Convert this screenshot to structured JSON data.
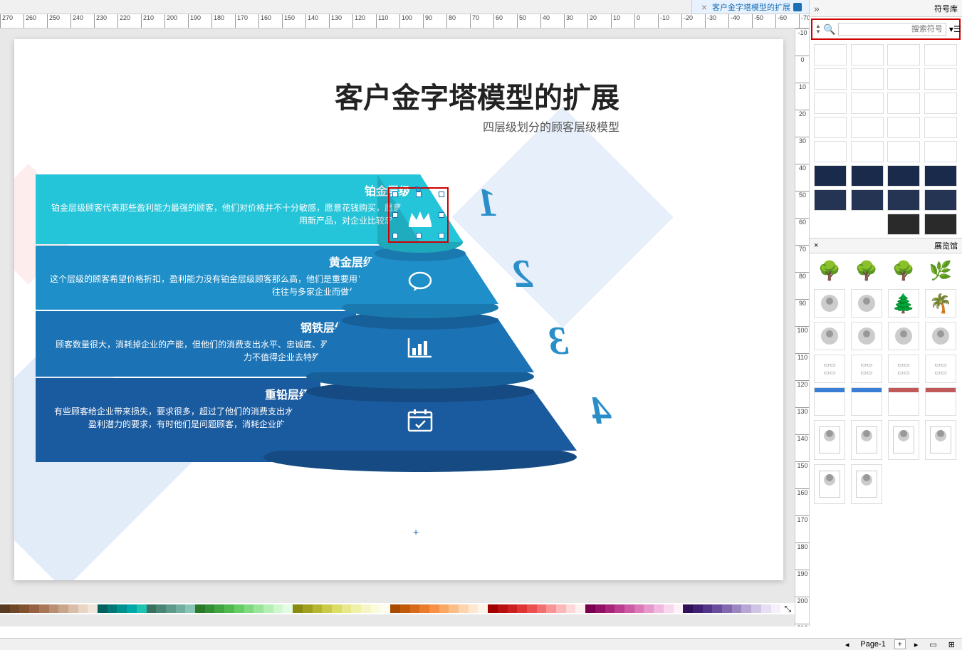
{
  "tab": {
    "title": "客户金字塔模型的扩展",
    "close": "×"
  },
  "rightPanel": {
    "header": "符号库",
    "searchPlaceholder": "搜索符号",
    "panel2": "展览馆",
    "close": "×",
    "chev": "»"
  },
  "slide": {
    "title": "客户金字塔模型的扩展",
    "subtitle": "四层级划分的顾客层级模型"
  },
  "pyramid": {
    "levels": [
      {
        "num": "1",
        "title": "铂金层级",
        "desc": "铂金层级顾客代表那些盈利能力最强的顾客，他们对价格并不十分敏感，愿意花钱购买，愿意试用新产品，对企业比较忠诚。",
        "color": "#24c4d9"
      },
      {
        "num": "2",
        "title": "黄金层级",
        "desc": "这个层级的顾客希望价格折扣，盈利能力没有铂金层级顾客那么高，他们是重要用户，往往与多家企业而做生意。",
        "color": "#1f8fc9"
      },
      {
        "num": "3",
        "title": "钢铁层级",
        "desc": "顾客数量很大，消耗掉企业的产能，但他们的消费支出水平、忠诚度、盈利能力不值得企业去特殊对待。",
        "color": "#1b72b5"
      },
      {
        "num": "4",
        "title": "重铅层级",
        "desc": "有些顾客给企业带来损失，要求很多，超过了他们的消费支出水平和盈利潜力的要求，有时他们是问题顾客，消耗企业的资源。",
        "color": "#1a5a9e"
      }
    ]
  },
  "ruler": {
    "h": [
      "-70",
      "-60",
      "-50",
      "-40",
      "-30",
      "-20",
      "-10",
      "0",
      "10",
      "20",
      "30",
      "40",
      "50",
      "60",
      "70",
      "80",
      "90",
      "100",
      "110",
      "120",
      "130",
      "140",
      "150",
      "160",
      "170",
      "180",
      "190",
      "200",
      "210",
      "220",
      "230",
      "240",
      "250",
      "260",
      "270"
    ],
    "v": [
      "-10",
      "0",
      "10",
      "20",
      "30",
      "40",
      "50",
      "60",
      "70",
      "80",
      "90",
      "100",
      "110",
      "120",
      "130",
      "140",
      "150",
      "160",
      "170",
      "180",
      "190",
      "200",
      "210"
    ]
  },
  "colors": [
    "#5a3a20",
    "#6e4628",
    "#82522f",
    "#966043",
    "#a87759",
    "#b98e72",
    "#c9a58c",
    "#d9bda7",
    "#e8d5c3",
    "#f2e6da",
    "#006060",
    "#007878",
    "#009090",
    "#00a8a8",
    "#1fc4b0",
    "#3a7060",
    "#4a8575",
    "#5c9a8a",
    "#70af9f",
    "#8ac4b4",
    "#2a7a2a",
    "#349034",
    "#40a540",
    "#50ba50",
    "#66cc66",
    "#80d980",
    "#9ae59a",
    "#b4f0b4",
    "#cef8ce",
    "#e4fce4",
    "#8a8a10",
    "#a0a020",
    "#b5b530",
    "#caca48",
    "#dcdc66",
    "#e8e888",
    "#f0f0a8",
    "#f6f6c4",
    "#fafadc",
    "#fdfdf0",
    "#a84a00",
    "#c05a0a",
    "#d66a18",
    "#e87c2c",
    "#f59044",
    "#faa764",
    "#fcbe88",
    "#fdd4ac",
    "#fee8d0",
    "#fff5ea",
    "#a00000",
    "#b81010",
    "#cc2020",
    "#dd3434",
    "#ea5050",
    "#f27070",
    "#f89494",
    "#fcb8b8",
    "#fed8d8",
    "#fff0f0",
    "#7a0050",
    "#921065",
    "#a8257a",
    "#bc3e90",
    "#cc5aa4",
    "#da78b8",
    "#e698cc",
    "#f0b8de",
    "#f8d6ee",
    "#fdf0f8",
    "#30105a",
    "#402072",
    "#543488",
    "#6a4c9c",
    "#8268b0",
    "#9c86c2",
    "#b6a6d4",
    "#d0c4e4",
    "#e6def2",
    "#f5f0fa"
  ],
  "status": {
    "page": "Page-1",
    "plus": "+"
  },
  "thumbThemes": [
    "light",
    "light",
    "light",
    "light",
    "light",
    "light",
    "light",
    "light",
    "light",
    "light",
    "light",
    "light",
    "light",
    "light",
    "light",
    "light",
    "light",
    "light",
    "light",
    "light",
    "dark",
    "dark",
    "dark",
    "dark",
    "dark2",
    "dark2",
    "dark2",
    "dark2",
    "empty",
    "empty",
    "dark3",
    "dark3"
  ]
}
